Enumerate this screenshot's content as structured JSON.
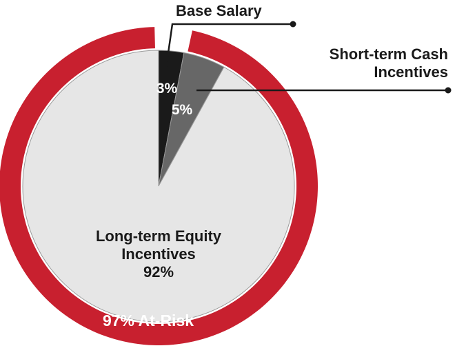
{
  "chart_data": {
    "type": "pie",
    "categories": [
      "Base Salary",
      "Short-term Cash Incentives",
      "Long-term Equity Incentives"
    ],
    "values": [
      3,
      5,
      92
    ],
    "value_labels": [
      "3%",
      "5%",
      "92%"
    ],
    "colors": [
      "#1a1a1a",
      "#676767",
      "#e6e6e6"
    ],
    "ring": {
      "label": "97% At-Risk",
      "value": 97,
      "color": "#c8202f"
    }
  }
}
